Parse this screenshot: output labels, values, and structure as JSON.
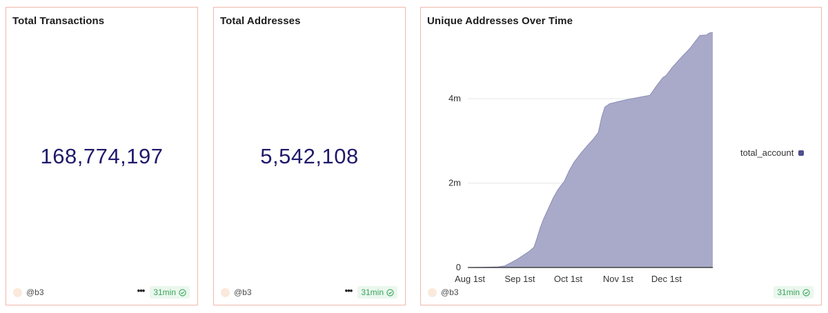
{
  "cards": [
    {
      "title": "Total Transactions",
      "value": "168,774,197",
      "author": "@b3",
      "refresh": "31min"
    },
    {
      "title": "Total Addresses",
      "value": "5,542,108",
      "author": "@b3",
      "refresh": "31min"
    }
  ],
  "chart_card": {
    "title": "Unique Addresses Over Time",
    "author": "@b3",
    "refresh": "31min"
  },
  "colors": {
    "border": "#f0b8ad",
    "value_text": "#1f1a6b",
    "area_fill": "#a9aac9",
    "area_line": "#8a8cb4",
    "legend_swatch": "#4e4f8f",
    "badge_text": "#3aa55a",
    "badge_bg": "#eaf7ee"
  },
  "chart_data": {
    "type": "area",
    "title": "Unique Addresses Over Time",
    "xlabel": "",
    "ylabel": "",
    "x_tick_labels": [
      "Aug 1st",
      "Sep 1st",
      "Oct 1st",
      "Nov 1st",
      "Dec 1st"
    ],
    "y_tick_labels": [
      "0",
      "2m",
      "4m"
    ],
    "y_ticks": [
      0,
      2000000,
      4000000
    ],
    "ylim": [
      0,
      5800000
    ],
    "x_range": [
      "Aug 1",
      "Dec 31"
    ],
    "grid": "horizontal",
    "legend": "right",
    "series": [
      {
        "name": "total_account",
        "points": [
          [
            "Aug 1",
            0
          ],
          [
            "Aug 10",
            5000
          ],
          [
            "Aug 20",
            15000
          ],
          [
            "Aug 24",
            40000
          ],
          [
            "Aug 27",
            100000
          ],
          [
            "Aug 31",
            180000
          ],
          [
            "Sep 4",
            280000
          ],
          [
            "Sep 8",
            380000
          ],
          [
            "Sep 11",
            480000
          ],
          [
            "Sep 13",
            700000
          ],
          [
            "Sep 15",
            950000
          ],
          [
            "Sep 17",
            1150000
          ],
          [
            "Sep 20",
            1400000
          ],
          [
            "Sep 23",
            1650000
          ],
          [
            "Sep 26",
            1850000
          ],
          [
            "Sep 30",
            2050000
          ],
          [
            "Oct 3",
            2300000
          ],
          [
            "Oct 6",
            2500000
          ],
          [
            "Oct 10",
            2700000
          ],
          [
            "Oct 14",
            2880000
          ],
          [
            "Oct 18",
            3050000
          ],
          [
            "Oct 21",
            3200000
          ],
          [
            "Oct 23",
            3550000
          ],
          [
            "Oct 25",
            3800000
          ],
          [
            "Oct 28",
            3880000
          ],
          [
            "Nov 2",
            3930000
          ],
          [
            "Nov 8",
            3980000
          ],
          [
            "Nov 15",
            4030000
          ],
          [
            "Nov 22",
            4080000
          ],
          [
            "Nov 26",
            4300000
          ],
          [
            "Nov 30",
            4500000
          ],
          [
            "Dec 2",
            4550000
          ],
          [
            "Dec 6",
            4750000
          ],
          [
            "Dec 12",
            5000000
          ],
          [
            "Dec 17",
            5200000
          ],
          [
            "Dec 20",
            5350000
          ],
          [
            "Dec 23",
            5500000
          ],
          [
            "Dec 27",
            5510000
          ],
          [
            "Dec 29",
            5560000
          ],
          [
            "Dec 31",
            5570000
          ]
        ]
      }
    ]
  }
}
